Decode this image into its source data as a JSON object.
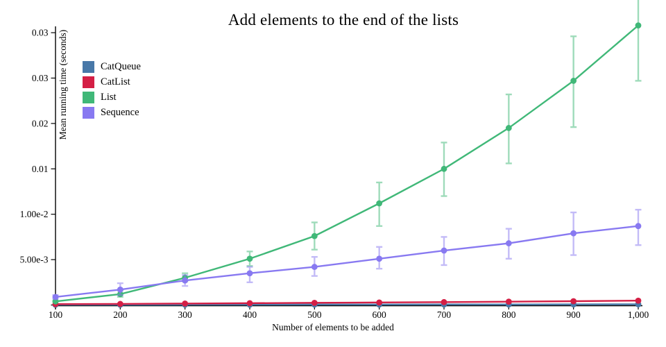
{
  "chart_data": {
    "type": "line",
    "title": "Add elements to the end of the lists",
    "xlabel": "Number of elements to be added",
    "ylabel": "Mean running time (seconds)",
    "legend_position": "top-left",
    "grid": false,
    "xlim": [
      100,
      1000
    ],
    "ylim": [
      0,
      0.0336
    ],
    "x": [
      100,
      200,
      300,
      400,
      500,
      600,
      700,
      800,
      900,
      1000
    ],
    "x_tick_labels": [
      "100",
      "200",
      "300",
      "400",
      "500",
      "600",
      "700",
      "800",
      "900",
      "1,000"
    ],
    "y_ticks": [
      {
        "value": 0,
        "label": ""
      },
      {
        "value": 0.005,
        "label": "5.00e-3"
      },
      {
        "value": 0.01,
        "label": "1.00e-2"
      },
      {
        "value": 0.015,
        "label": "0.01"
      },
      {
        "value": 0.02,
        "label": "0.02"
      },
      {
        "value": 0.025,
        "label": "0.03"
      },
      {
        "value": 0.03,
        "label": "0.03"
      }
    ],
    "series": [
      {
        "name": "CatQueue",
        "color": "#4878a8",
        "values": [
          3e-05,
          3e-05,
          4e-05,
          4e-05,
          5e-05,
          5e-05,
          6e-05,
          6e-05,
          7e-05,
          8e-05
        ],
        "err_low": [
          3e-05,
          3e-05,
          4e-05,
          4e-05,
          5e-05,
          5e-05,
          6e-05,
          6e-05,
          7e-05,
          8e-05
        ],
        "err_high": [
          3e-05,
          3e-05,
          4e-05,
          4e-05,
          5e-05,
          5e-05,
          6e-05,
          6e-05,
          7e-05,
          8e-05
        ]
      },
      {
        "name": "CatList",
        "color": "#d41f45",
        "values": [
          0.0001,
          0.00012,
          0.00016,
          0.0002,
          0.00024,
          0.00028,
          0.00032,
          0.00037,
          0.00042,
          0.00048
        ],
        "err_low": [
          0.0001,
          0.00012,
          0.00016,
          0.0002,
          0.00024,
          0.00028,
          0.00032,
          0.00037,
          0.00042,
          0.00048
        ],
        "err_high": [
          0.0001,
          0.00012,
          0.00016,
          0.0002,
          0.00024,
          0.00028,
          0.00032,
          0.00037,
          0.00042,
          0.00048
        ]
      },
      {
        "name": "List",
        "color": "#40b878",
        "values": [
          0.0004,
          0.0012,
          0.003,
          0.0051,
          0.0076,
          0.0112,
          0.015,
          0.0195,
          0.0247,
          0.0308
        ],
        "err_low": [
          0.00035,
          0.0009,
          0.0026,
          0.0043,
          0.0061,
          0.0087,
          0.012,
          0.0156,
          0.0196,
          0.0247
        ],
        "err_high": [
          0.00045,
          0.0016,
          0.0035,
          0.0059,
          0.0091,
          0.0135,
          0.0179,
          0.0232,
          0.0296,
          0.0346
        ]
      },
      {
        "name": "Sequence",
        "color": "#8879f1",
        "values": [
          0.00088,
          0.0017,
          0.0027,
          0.0035,
          0.0042,
          0.0051,
          0.006,
          0.0068,
          0.0079,
          0.0087
        ],
        "err_low": [
          0.0007,
          0.0011,
          0.0021,
          0.0025,
          0.0032,
          0.004,
          0.0044,
          0.0051,
          0.0055,
          0.0066
        ],
        "err_high": [
          0.0011,
          0.0024,
          0.0033,
          0.0042,
          0.0053,
          0.0064,
          0.0075,
          0.0084,
          0.0102,
          0.0105
        ]
      }
    ]
  }
}
